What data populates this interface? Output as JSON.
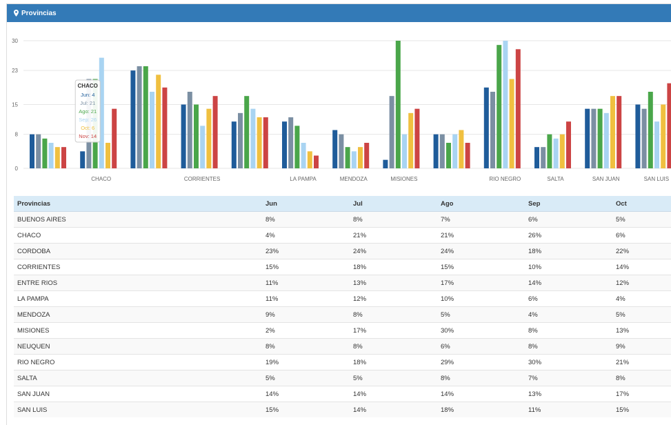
{
  "panel": {
    "title": "Provincias"
  },
  "colors": {
    "header_bg": "#337ab7",
    "series": [
      "#1f5c9a",
      "#7b8fa3",
      "#4aa64a",
      "#a9d4f2",
      "#f0c040",
      "#cc4444"
    ]
  },
  "chart_data": {
    "type": "bar",
    "title": "",
    "ylim": [
      0,
      30
    ],
    "yticks": [
      0,
      8,
      15,
      23,
      30
    ],
    "grid": true,
    "categories": [
      "BUENOS AIRES",
      "CHACO",
      "CORDOBA",
      "CORRIENTES",
      "ENTRE RIOS",
      "LA PAMPA",
      "MENDOZA",
      "MISIONES",
      "NEUQUEN",
      "RIO NEGRO",
      "SALTA",
      "SAN JUAN",
      "SAN LUIS"
    ],
    "shown_category_labels": [
      "",
      "CHACO",
      "",
      "CORRIENTES",
      "",
      "LA PAMPA",
      "MENDOZA",
      "MISIONES",
      "",
      "RIO NEGRO",
      "SALTA",
      "SAN JUAN",
      "SAN LUIS"
    ],
    "series": [
      {
        "name": "Jun",
        "values": [
          8,
          4,
          23,
          15,
          11,
          11,
          9,
          2,
          8,
          19,
          5,
          14,
          15
        ]
      },
      {
        "name": "Jul",
        "values": [
          8,
          21,
          24,
          18,
          13,
          12,
          8,
          17,
          8,
          18,
          5,
          14,
          14
        ]
      },
      {
        "name": "Ago",
        "values": [
          7,
          21,
          24,
          15,
          17,
          10,
          5,
          30,
          6,
          29,
          8,
          14,
          18
        ]
      },
      {
        "name": "Sep",
        "values": [
          6,
          26,
          18,
          10,
          14,
          6,
          4,
          8,
          8,
          30,
          7,
          13,
          11
        ]
      },
      {
        "name": "Oct",
        "values": [
          5,
          6,
          22,
          14,
          12,
          4,
          5,
          13,
          9,
          21,
          8,
          17,
          15
        ]
      },
      {
        "name": "Nov",
        "values": [
          5,
          14,
          19,
          17,
          12,
          3,
          6,
          14,
          6,
          28,
          11,
          17,
          20
        ]
      }
    ],
    "tooltip": {
      "category": "CHACO",
      "lines": [
        "Jun: 4",
        "Jul: 21",
        "Ago: 21",
        "Sep: 26",
        "Oct: 6",
        "Nov: 14"
      ]
    }
  },
  "table": {
    "headers": [
      "Provincias",
      "Jun",
      "Jul",
      "Ago",
      "Sep",
      "Oct"
    ],
    "rows": [
      [
        "BUENOS AIRES",
        "8%",
        "8%",
        "7%",
        "6%",
        "5%"
      ],
      [
        "CHACO",
        "4%",
        "21%",
        "21%",
        "26%",
        "6%"
      ],
      [
        "CORDOBA",
        "23%",
        "24%",
        "24%",
        "18%",
        "22%"
      ],
      [
        "CORRIENTES",
        "15%",
        "18%",
        "15%",
        "10%",
        "14%"
      ],
      [
        "ENTRE RIOS",
        "11%",
        "13%",
        "17%",
        "14%",
        "12%"
      ],
      [
        "LA PAMPA",
        "11%",
        "12%",
        "10%",
        "6%",
        "4%"
      ],
      [
        "MENDOZA",
        "9%",
        "8%",
        "5%",
        "4%",
        "5%"
      ],
      [
        "MISIONES",
        "2%",
        "17%",
        "30%",
        "8%",
        "13%"
      ],
      [
        "NEUQUEN",
        "8%",
        "8%",
        "6%",
        "8%",
        "9%"
      ],
      [
        "RIO NEGRO",
        "19%",
        "18%",
        "29%",
        "30%",
        "21%"
      ],
      [
        "SALTA",
        "5%",
        "5%",
        "8%",
        "7%",
        "8%"
      ],
      [
        "SAN JUAN",
        "14%",
        "14%",
        "14%",
        "13%",
        "17%"
      ],
      [
        "SAN LUIS",
        "15%",
        "14%",
        "18%",
        "11%",
        "15%"
      ]
    ]
  }
}
